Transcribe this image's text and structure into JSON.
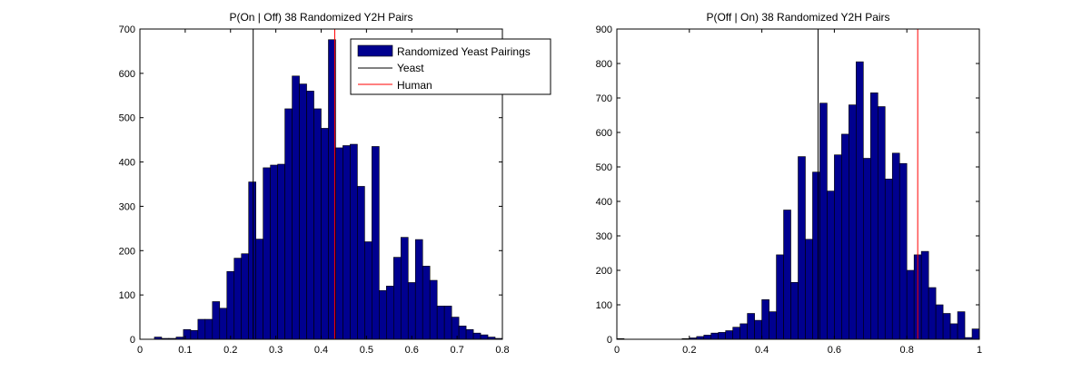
{
  "chart_data": [
    {
      "type": "bar",
      "title": "P(On | Off) 38 Randomized Y2H Pairs",
      "xlim": [
        0,
        0.8
      ],
      "ylim": [
        0,
        700
      ],
      "xticks": [
        "0",
        "0.1",
        "0.2",
        "0.3",
        "0.4",
        "0.5",
        "0.6",
        "0.7",
        "0.8"
      ],
      "yticks": [
        "0",
        "100",
        "200",
        "300",
        "400",
        "500",
        "600",
        "700"
      ],
      "bin_width": 0.016,
      "bin_centers": [
        0.008,
        0.024,
        0.04,
        0.056,
        0.072,
        0.088,
        0.104,
        0.12,
        0.136,
        0.152,
        0.168,
        0.184,
        0.2,
        0.216,
        0.232,
        0.248,
        0.264,
        0.28,
        0.296,
        0.312,
        0.328,
        0.344,
        0.36,
        0.376,
        0.392,
        0.408,
        0.424,
        0.44,
        0.456,
        0.472,
        0.488,
        0.504,
        0.52,
        0.536,
        0.552,
        0.568,
        0.584,
        0.6,
        0.616,
        0.632,
        0.648,
        0.664,
        0.68,
        0.696,
        0.712,
        0.728,
        0.744,
        0.76,
        0.776,
        0.792
      ],
      "values": [
        0,
        0,
        5,
        2,
        2,
        5,
        22,
        20,
        45,
        45,
        85,
        70,
        153,
        183,
        193,
        355,
        226,
        387,
        393,
        395,
        520,
        594,
        576,
        560,
        520,
        476,
        676,
        432,
        437,
        440,
        345,
        220,
        435,
        110,
        120,
        185,
        230,
        128,
        225,
        165,
        133,
        75,
        75,
        50,
        30,
        22,
        14,
        10,
        5,
        2
      ],
      "series_name": "Randomized Yeast Pairings",
      "vlines": [
        {
          "name": "Yeast",
          "x": 0.25,
          "color": "#000000"
        },
        {
          "name": "Human",
          "x": 0.43,
          "color": "#ff0000"
        }
      ],
      "legend": [
        "Randomized Yeast Pairings",
        "Yeast",
        "Human"
      ],
      "legend_position": "top-right"
    },
    {
      "type": "bar",
      "title": "P(Off | On) 38 Randomized Y2H Pairs",
      "xlim": [
        0,
        1
      ],
      "ylim": [
        0,
        900
      ],
      "xticks": [
        "0",
        "0.2",
        "0.4",
        "0.6",
        "0.8",
        "1"
      ],
      "yticks": [
        "0",
        "100",
        "200",
        "300",
        "400",
        "500",
        "600",
        "700",
        "800",
        "900"
      ],
      "bin_width": 0.02,
      "bin_centers": [
        0.01,
        0.03,
        0.05,
        0.07,
        0.09,
        0.11,
        0.13,
        0.15,
        0.17,
        0.19,
        0.21,
        0.23,
        0.25,
        0.27,
        0.29,
        0.31,
        0.33,
        0.35,
        0.37,
        0.39,
        0.41,
        0.43,
        0.45,
        0.47,
        0.49,
        0.51,
        0.53,
        0.55,
        0.57,
        0.59,
        0.61,
        0.63,
        0.65,
        0.67,
        0.69,
        0.71,
        0.73,
        0.75,
        0.77,
        0.79,
        0.81,
        0.83,
        0.85,
        0.87,
        0.89,
        0.91,
        0.93,
        0.95,
        0.97,
        0.99
      ],
      "values": [
        2,
        0,
        0,
        0,
        0,
        0,
        0,
        0,
        0,
        2,
        4,
        8,
        12,
        18,
        20,
        25,
        35,
        45,
        75,
        55,
        115,
        80,
        245,
        375,
        165,
        530,
        290,
        485,
        685,
        430,
        535,
        595,
        680,
        805,
        525,
        715,
        675,
        465,
        540,
        510,
        200,
        245,
        255,
        150,
        100,
        75,
        45,
        80,
        5,
        30
      ],
      "vlines": [
        {
          "name": "Yeast",
          "x": 0.555,
          "color": "#000000"
        },
        {
          "name": "Human",
          "x": 0.83,
          "color": "#ff0000"
        }
      ]
    }
  ]
}
